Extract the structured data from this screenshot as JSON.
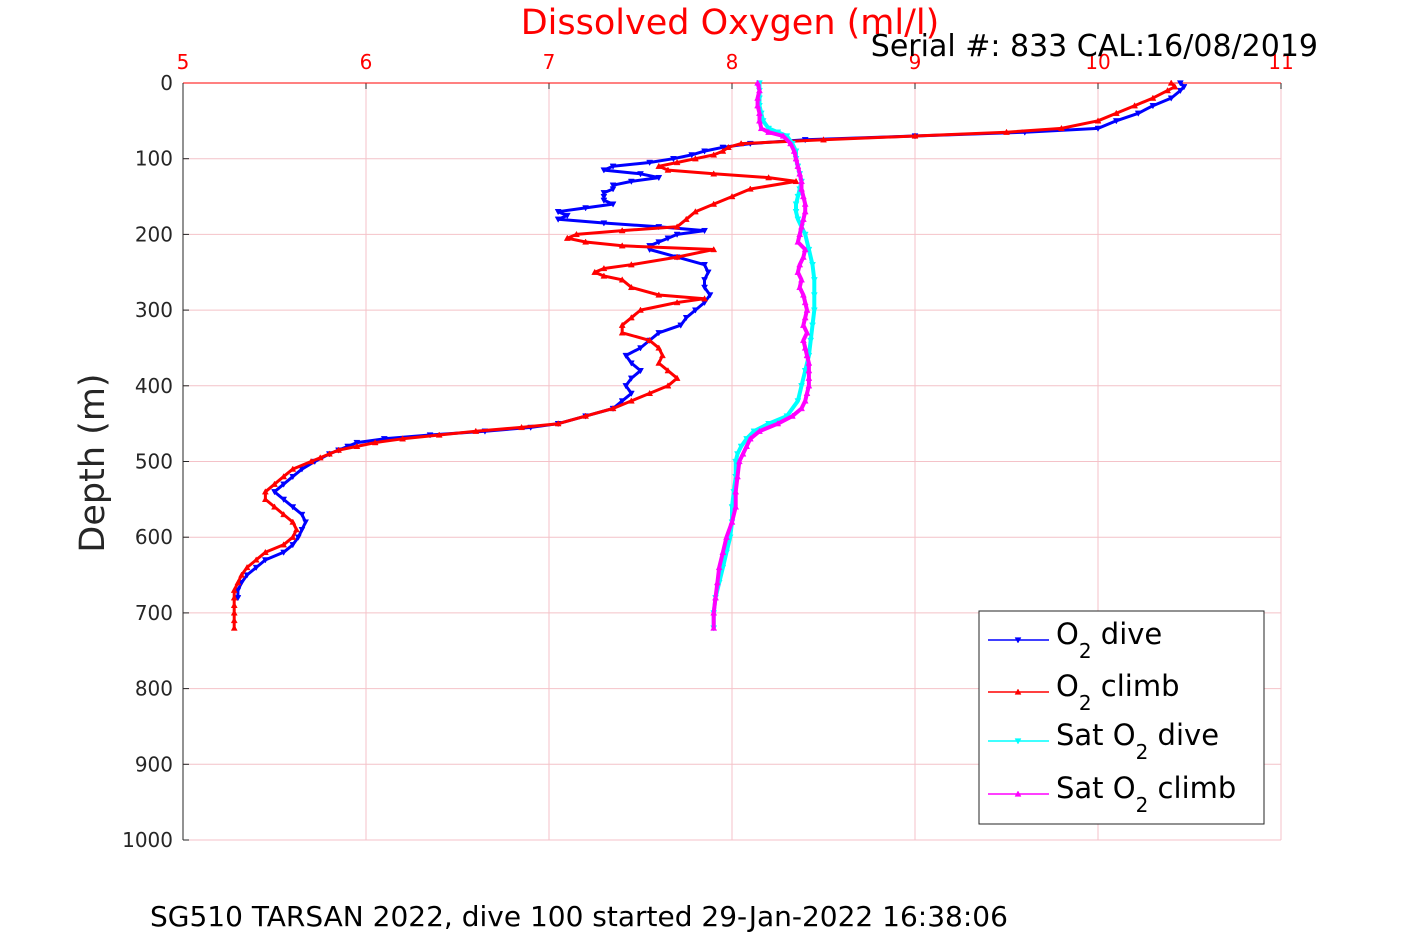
{
  "chart_data": {
    "type": "line",
    "title": "Dissolved Oxygen (ml/l)",
    "annotation": "Serial #: 833  CAL:16/08/2019",
    "caption": "SG510 TARSAN 2022, dive 100 started 29-Jan-2022 16:38:06",
    "ylabel": "Depth (m)",
    "xlabel": "",
    "xlim": [
      5,
      11
    ],
    "ylim": [
      0,
      1000
    ],
    "y_reversed": true,
    "x_axis_position": "top",
    "x_ticks": [
      "5",
      "6",
      "7",
      "8",
      "9",
      "10",
      "11"
    ],
    "y_ticks": [
      "0",
      "100",
      "200",
      "300",
      "400",
      "500",
      "600",
      "700",
      "800",
      "900",
      "1000"
    ],
    "grid": true,
    "grid_color": "#f4c2c8",
    "legend_position": "bottom-right",
    "series": [
      {
        "name": "O2 dive",
        "legend_main": "O",
        "legend_sub": "2",
        "legend_suffix": " dive",
        "color": "#0000ff",
        "marker": "triangle-down",
        "depth": [
          0,
          5,
          10,
          20,
          30,
          40,
          50,
          60,
          65,
          70,
          75,
          80,
          85,
          90,
          95,
          100,
          105,
          110,
          115,
          120,
          125,
          130,
          135,
          140,
          145,
          150,
          155,
          160,
          165,
          170,
          175,
          180,
          185,
          190,
          195,
          200,
          205,
          210,
          215,
          220,
          230,
          240,
          250,
          260,
          270,
          280,
          290,
          300,
          310,
          320,
          330,
          340,
          350,
          360,
          370,
          380,
          390,
          400,
          410,
          420,
          430,
          440,
          450,
          455,
          460,
          465,
          470,
          475,
          480,
          485,
          490,
          500,
          510,
          520,
          530,
          540,
          550,
          560,
          570,
          580,
          590,
          600,
          610,
          620,
          630,
          640,
          650,
          660,
          670,
          680
        ],
        "values": [
          10.45,
          10.47,
          10.45,
          10.4,
          10.3,
          10.22,
          10.1,
          10.0,
          9.6,
          9.0,
          8.4,
          8.1,
          7.95,
          7.85,
          7.78,
          7.68,
          7.55,
          7.35,
          7.3,
          7.5,
          7.6,
          7.45,
          7.35,
          7.35,
          7.3,
          7.3,
          7.3,
          7.35,
          7.2,
          7.05,
          7.1,
          7.05,
          7.3,
          7.6,
          7.85,
          7.7,
          7.65,
          7.6,
          7.55,
          7.55,
          7.7,
          7.85,
          7.87,
          7.85,
          7.85,
          7.88,
          7.85,
          7.8,
          7.75,
          7.72,
          7.6,
          7.55,
          7.5,
          7.42,
          7.45,
          7.5,
          7.45,
          7.42,
          7.45,
          7.4,
          7.35,
          7.2,
          7.05,
          6.9,
          6.65,
          6.35,
          6.1,
          5.95,
          5.9,
          5.85,
          5.8,
          5.72,
          5.65,
          5.6,
          5.55,
          5.5,
          5.55,
          5.6,
          5.65,
          5.67,
          5.65,
          5.63,
          5.6,
          5.55,
          5.45,
          5.4,
          5.35,
          5.32,
          5.3,
          5.3
        ]
      },
      {
        "name": "O2 climb",
        "legend_main": "O",
        "legend_sub": "2",
        "legend_suffix": " climb",
        "color": "#ff0000",
        "marker": "triangle-up",
        "depth": [
          0,
          5,
          10,
          20,
          30,
          40,
          50,
          60,
          65,
          70,
          75,
          80,
          85,
          90,
          95,
          100,
          105,
          110,
          115,
          120,
          125,
          130,
          140,
          150,
          160,
          170,
          180,
          190,
          195,
          200,
          205,
          210,
          215,
          220,
          230,
          240,
          245,
          250,
          255,
          260,
          270,
          280,
          285,
          290,
          300,
          310,
          320,
          330,
          340,
          350,
          360,
          370,
          380,
          390,
          400,
          410,
          420,
          430,
          440,
          450,
          455,
          460,
          465,
          470,
          475,
          480,
          485,
          490,
          495,
          500,
          510,
          520,
          530,
          540,
          550,
          560,
          570,
          580,
          590,
          600,
          610,
          620,
          630,
          640,
          650,
          660,
          670,
          680,
          690,
          700,
          710,
          720
        ],
        "values": [
          10.4,
          10.42,
          10.38,
          10.3,
          10.2,
          10.1,
          10.0,
          9.8,
          9.5,
          9.0,
          8.5,
          8.05,
          7.98,
          7.95,
          7.9,
          7.8,
          7.7,
          7.6,
          7.65,
          7.9,
          8.2,
          8.35,
          8.1,
          8.0,
          7.9,
          7.8,
          7.75,
          7.7,
          7.4,
          7.15,
          7.1,
          7.2,
          7.4,
          7.9,
          7.7,
          7.45,
          7.3,
          7.25,
          7.3,
          7.4,
          7.45,
          7.6,
          7.85,
          7.7,
          7.5,
          7.45,
          7.4,
          7.4,
          7.55,
          7.6,
          7.62,
          7.6,
          7.65,
          7.7,
          7.65,
          7.55,
          7.45,
          7.35,
          7.2,
          7.05,
          6.85,
          6.6,
          6.4,
          6.2,
          6.05,
          5.95,
          5.85,
          5.8,
          5.75,
          5.7,
          5.6,
          5.55,
          5.5,
          5.45,
          5.45,
          5.5,
          5.55,
          5.6,
          5.62,
          5.6,
          5.55,
          5.45,
          5.4,
          5.35,
          5.32,
          5.3,
          5.28,
          5.28,
          5.28,
          5.28,
          5.28,
          5.28
        ]
      },
      {
        "name": "Sat O2 dive",
        "legend_main": "Sat O",
        "legend_sub": "2",
        "legend_suffix": " dive",
        "color": "#00ffff",
        "marker": "triangle-down",
        "depth": [
          0,
          10,
          20,
          30,
          40,
          50,
          60,
          65,
          70,
          80,
          90,
          100,
          110,
          120,
          130,
          140,
          150,
          160,
          170,
          180,
          190,
          200,
          220,
          240,
          260,
          280,
          300,
          320,
          340,
          360,
          380,
          400,
          420,
          440,
          450,
          460,
          470,
          480,
          490,
          500,
          520,
          540,
          560,
          580,
          600,
          620,
          640,
          660,
          680,
          700,
          720
        ],
        "values": [
          8.15,
          8.15,
          8.15,
          8.15,
          8.16,
          8.17,
          8.2,
          8.25,
          8.3,
          8.33,
          8.35,
          8.35,
          8.36,
          8.37,
          8.38,
          8.37,
          8.36,
          8.35,
          8.35,
          8.36,
          8.38,
          8.4,
          8.42,
          8.44,
          8.45,
          8.45,
          8.45,
          8.44,
          8.43,
          8.42,
          8.4,
          8.38,
          8.36,
          8.3,
          8.2,
          8.12,
          8.08,
          8.05,
          8.03,
          8.02,
          8.02,
          8.01,
          8.0,
          8.0,
          7.99,
          7.97,
          7.95,
          7.93,
          7.91,
          7.9,
          7.9
        ]
      },
      {
        "name": "Sat O2 climb",
        "legend_main": "Sat O",
        "legend_sub": "2",
        "legend_suffix": " climb",
        "color": "#ff00ff",
        "marker": "triangle-up",
        "depth": [
          0,
          10,
          20,
          30,
          40,
          50,
          60,
          65,
          70,
          80,
          90,
          100,
          110,
          120,
          130,
          140,
          150,
          160,
          170,
          180,
          190,
          200,
          210,
          220,
          230,
          240,
          250,
          260,
          270,
          280,
          290,
          300,
          310,
          320,
          330,
          340,
          350,
          360,
          370,
          380,
          390,
          400,
          410,
          420,
          430,
          440,
          450,
          460,
          470,
          480,
          490,
          500,
          520,
          540,
          560,
          580,
          600,
          620,
          640,
          660,
          680,
          700,
          720
        ],
        "values": [
          8.14,
          8.15,
          8.14,
          8.14,
          8.15,
          8.15,
          8.16,
          8.2,
          8.28,
          8.32,
          8.34,
          8.35,
          8.36,
          8.37,
          8.38,
          8.38,
          8.39,
          8.4,
          8.4,
          8.39,
          8.38,
          8.37,
          8.36,
          8.4,
          8.39,
          8.37,
          8.36,
          8.38,
          8.37,
          8.39,
          8.4,
          8.41,
          8.4,
          8.39,
          8.41,
          8.39,
          8.4,
          8.41,
          8.42,
          8.42,
          8.42,
          8.42,
          8.41,
          8.4,
          8.38,
          8.33,
          8.25,
          8.15,
          8.1,
          8.08,
          8.06,
          8.04,
          8.03,
          8.02,
          8.02,
          8.0,
          7.97,
          7.95,
          7.93,
          7.92,
          7.91,
          7.9,
          7.9
        ]
      }
    ]
  }
}
